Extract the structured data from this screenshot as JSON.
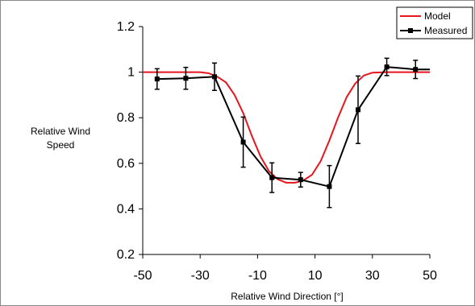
{
  "chart_data": {
    "type": "line",
    "title": "",
    "xlabel": "Relative Wind Direction [°]",
    "ylabel_lines": [
      "Relative Wind",
      "Speed"
    ],
    "xlim": [
      -50,
      50
    ],
    "ylim": [
      0.2,
      1.2
    ],
    "x_ticks": [
      -50,
      -30,
      -10,
      10,
      30,
      50
    ],
    "x_tick_labels": [
      "-50",
      "-30",
      "-10",
      "10",
      "30",
      "50"
    ],
    "y_ticks": [
      0.2,
      0.4,
      0.6,
      0.8,
      1.0,
      1.2
    ],
    "y_tick_labels": [
      "0.2",
      "0.4",
      "0.6",
      "0.8",
      "1",
      "1.2"
    ],
    "grid": false,
    "legend_position": "top-right",
    "series": [
      {
        "name": "Model",
        "color": "#e8141e",
        "x": [
          -50,
          -40,
          -30,
          -27,
          -24,
          -21,
          -18,
          -15,
          -12,
          -9,
          -6,
          -3,
          0,
          3,
          6,
          9,
          12,
          15,
          18,
          21,
          24,
          27,
          30,
          35,
          40,
          50
        ],
        "y": [
          1.0,
          1.0,
          1.0,
          0.995,
          0.98,
          0.955,
          0.9,
          0.82,
          0.72,
          0.63,
          0.565,
          0.53,
          0.515,
          0.515,
          0.525,
          0.55,
          0.61,
          0.7,
          0.8,
          0.89,
          0.95,
          0.985,
          0.998,
          1.0,
          1.0,
          1.0
        ]
      },
      {
        "name": "Measured",
        "color": "#000000",
        "marker": "square",
        "x": [
          -45,
          -35,
          -25,
          -15,
          -5,
          5,
          15,
          25,
          35,
          45,
          50
        ],
        "y": [
          0.97,
          0.973,
          0.98,
          0.693,
          0.537,
          0.528,
          0.498,
          0.835,
          1.023,
          1.012,
          1.012
        ],
        "error": [
          0.045,
          0.048,
          0.06,
          0.11,
          0.065,
          0.032,
          0.092,
          0.148,
          0.038,
          0.04,
          null
        ]
      }
    ]
  }
}
